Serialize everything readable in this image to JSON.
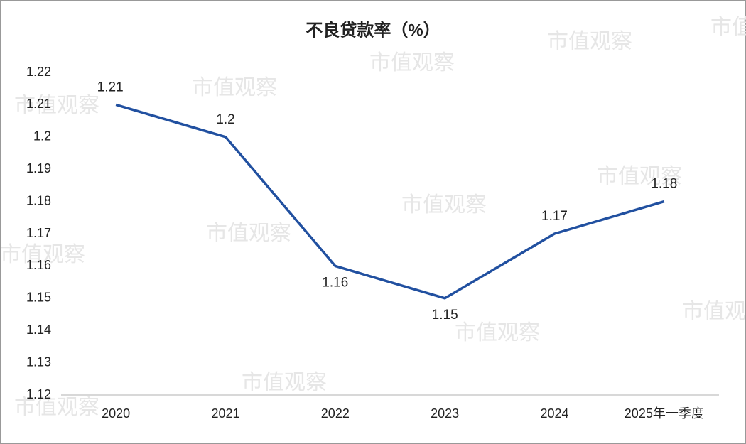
{
  "chart_data": {
    "type": "line",
    "title": "不良贷款率（%）",
    "categories": [
      "2020",
      "2021",
      "2022",
      "2023",
      "2024",
      "2025年一季度"
    ],
    "series": [
      {
        "name": "不良贷款率",
        "color": "#2150a0",
        "values": [
          1.21,
          1.2,
          1.16,
          1.15,
          1.17,
          1.18
        ]
      }
    ],
    "ylim": [
      1.12,
      1.22
    ],
    "yticks": [
      1.12,
      1.13,
      1.14,
      1.15,
      1.16,
      1.17,
      1.18,
      1.19,
      1.2,
      1.21,
      1.22
    ],
    "grid": false,
    "watermark": "市值观察"
  }
}
